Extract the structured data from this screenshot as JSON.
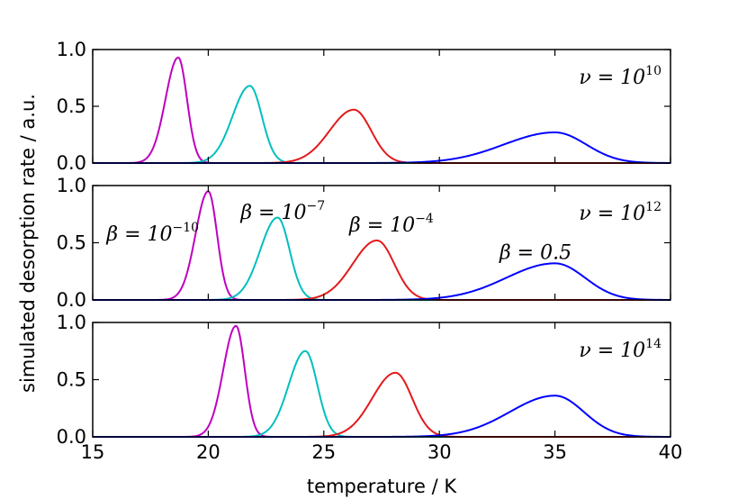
{
  "chart_data": {
    "type": "line",
    "xlabel": "temperature / K",
    "ylabel": "simulated desorption rate / a.u.",
    "xlim": [
      15,
      40
    ],
    "ylim": [
      0,
      1
    ],
    "x_ticks": [
      "15",
      "20",
      "25",
      "30",
      "35",
      "40"
    ],
    "y_ticks": [
      "0.0",
      "0.5",
      "1.0"
    ],
    "colors": {
      "beta_1e-10": "#bf00bf",
      "beta_1e-7": "#00bfbf",
      "beta_1e-4": "#e31a1c",
      "beta_0.5": "#0000ff"
    },
    "panels": [
      {
        "nu_label": {
          "base": "ν = 10",
          "exp": "10"
        },
        "series": [
          {
            "name": "β = 10^-10",
            "peak_T": 18.7,
            "peak_rate": 0.93,
            "width_left": 0.55,
            "width_right": 0.38
          },
          {
            "name": "β = 10^-7",
            "peak_T": 21.8,
            "peak_rate": 0.68,
            "width_left": 0.75,
            "width_right": 0.52
          },
          {
            "name": "β = 10^-4",
            "peak_T": 26.3,
            "peak_rate": 0.47,
            "width_left": 1.05,
            "width_right": 0.75
          },
          {
            "name": "β = 0.5",
            "peak_T": 35.0,
            "peak_rate": 0.27,
            "width_left": 2.2,
            "width_right": 1.35
          }
        ]
      },
      {
        "nu_label": {
          "base": "ν = 10",
          "exp": "12"
        },
        "series": [
          {
            "name": "β = 10^-10",
            "peak_T": 20.0,
            "peak_rate": 0.95,
            "width_left": 0.55,
            "width_right": 0.38
          },
          {
            "name": "β = 10^-7",
            "peak_T": 23.0,
            "peak_rate": 0.72,
            "width_left": 0.75,
            "width_right": 0.52
          },
          {
            "name": "β = 10^-4",
            "peak_T": 27.3,
            "peak_rate": 0.52,
            "width_left": 1.05,
            "width_right": 0.75
          },
          {
            "name": "β = 0.5",
            "peak_T": 35.0,
            "peak_rate": 0.32,
            "width_left": 2.1,
            "width_right": 1.3
          }
        ],
        "annotations": [
          {
            "base": "β = 10",
            "exp": "−10",
            "x_T": 15.6,
            "y_rate": 0.52
          },
          {
            "base": "β = 10",
            "exp": "−7",
            "x_T": 21.4,
            "y_rate": 0.71
          },
          {
            "base": "β = 10",
            "exp": "−4",
            "x_T": 26.1,
            "y_rate": 0.6
          },
          {
            "base": "β = 0.5",
            "exp": "",
            "x_T": 32.6,
            "y_rate": 0.36
          }
        ]
      },
      {
        "nu_label": {
          "base": "ν = 10",
          "exp": "14"
        },
        "series": [
          {
            "name": "β = 10^-10",
            "peak_T": 21.2,
            "peak_rate": 0.97,
            "width_left": 0.55,
            "width_right": 0.38
          },
          {
            "name": "β = 10^-7",
            "peak_T": 24.2,
            "peak_rate": 0.75,
            "width_left": 0.72,
            "width_right": 0.52
          },
          {
            "name": "β = 10^-4",
            "peak_T": 28.1,
            "peak_rate": 0.56,
            "width_left": 1.0,
            "width_right": 0.72
          },
          {
            "name": "β = 0.5",
            "peak_T": 35.0,
            "peak_rate": 0.36,
            "width_left": 1.95,
            "width_right": 1.25
          }
        ]
      }
    ]
  }
}
